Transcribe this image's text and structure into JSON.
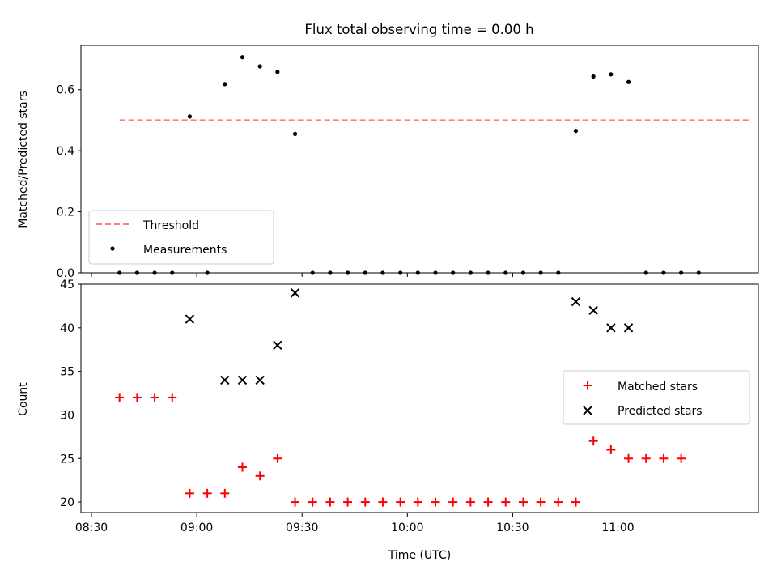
{
  "figure": {
    "title": "Flux total observing time = 0.00 h"
  },
  "chart_data": [
    {
      "type": "scatter",
      "title": "Flux total observing time = 0.00 h",
      "xlabel": "",
      "ylabel": "Matched/Predicted stars",
      "xlim": [
        "08:27",
        "11:40"
      ],
      "ylim": [
        0,
        0.745
      ],
      "yticks": [
        0.0,
        0.2,
        0.4,
        0.6
      ],
      "ytick_labels": [
        "0.0",
        "0.2",
        "0.4",
        "0.6"
      ],
      "xticks": [
        "08:30",
        "09:00",
        "09:30",
        "10:00",
        "10:30",
        "11:00"
      ],
      "xtick_labels": [
        "",
        "",
        "",
        "",
        "",
        ""
      ],
      "grid": false,
      "legend": "lower-left",
      "threshold": {
        "name": "Threshold",
        "value": 0.5,
        "x_start": "08:38",
        "x_end": "11:38",
        "color": "#ff7f7f"
      },
      "series": [
        {
          "name": "Measurements",
          "marker": "dot",
          "color": "#000000",
          "x": [
            "08:38",
            "08:43",
            "08:48",
            "08:53",
            "08:58",
            "09:03",
            "09:08",
            "09:13",
            "09:18",
            "09:23",
            "09:28",
            "09:33",
            "09:38",
            "09:43",
            "09:48",
            "09:53",
            "09:58",
            "10:03",
            "10:08",
            "10:13",
            "10:18",
            "10:23",
            "10:28",
            "10:33",
            "10:38",
            "10:43",
            "10:48",
            "10:53",
            "10:58",
            "11:03",
            "11:08",
            "11:13",
            "11:18",
            "11:23"
          ],
          "y": [
            0,
            0,
            0,
            0,
            0.512,
            0,
            0.618,
            0.706,
            0.676,
            0.658,
            0.455,
            0,
            0,
            0,
            0,
            0,
            0,
            0,
            0,
            0,
            0,
            0,
            0,
            0,
            0,
            0,
            0.465,
            0.643,
            0.65,
            0.625,
            0,
            0,
            0,
            0
          ]
        }
      ]
    },
    {
      "type": "scatter",
      "title": "",
      "xlabel": "Time (UTC)",
      "ylabel": "Count",
      "xlim": [
        "08:27",
        "11:40"
      ],
      "ylim": [
        18.8,
        45
      ],
      "yticks": [
        20,
        25,
        30,
        35,
        40,
        45
      ],
      "ytick_labels": [
        "20",
        "25",
        "30",
        "35",
        "40",
        "45"
      ],
      "xticks": [
        "08:30",
        "09:00",
        "09:30",
        "10:00",
        "10:30",
        "11:00"
      ],
      "xtick_labels": [
        "08:30",
        "09:00",
        "09:30",
        "10:00",
        "10:30",
        "11:00"
      ],
      "grid": false,
      "legend": "center-right",
      "series": [
        {
          "name": "Matched stars",
          "marker": "plus",
          "color": "#ff0000",
          "x": [
            "08:38",
            "08:43",
            "08:48",
            "08:53",
            "08:58",
            "09:03",
            "09:08",
            "09:13",
            "09:18",
            "09:23",
            "09:28",
            "09:33",
            "09:38",
            "09:43",
            "09:48",
            "09:53",
            "09:58",
            "10:03",
            "10:08",
            "10:13",
            "10:18",
            "10:23",
            "10:28",
            "10:33",
            "10:38",
            "10:43",
            "10:48",
            "10:53",
            "10:58",
            "11:03",
            "11:08",
            "11:13",
            "11:18"
          ],
          "y": [
            32,
            32,
            32,
            32,
            21,
            21,
            21,
            24,
            23,
            25,
            20,
            20,
            20,
            20,
            20,
            20,
            20,
            20,
            20,
            20,
            20,
            20,
            20,
            20,
            20,
            20,
            20,
            27,
            26,
            25,
            25,
            25,
            25
          ]
        },
        {
          "name": "Predicted stars",
          "marker": "x",
          "color": "#000000",
          "x": [
            "08:58",
            "09:08",
            "09:13",
            "09:18",
            "09:23",
            "09:28",
            "10:48",
            "10:53",
            "10:58",
            "11:03"
          ],
          "y": [
            41,
            34,
            34,
            34,
            38,
            44,
            43,
            42,
            40,
            40
          ]
        }
      ]
    }
  ]
}
